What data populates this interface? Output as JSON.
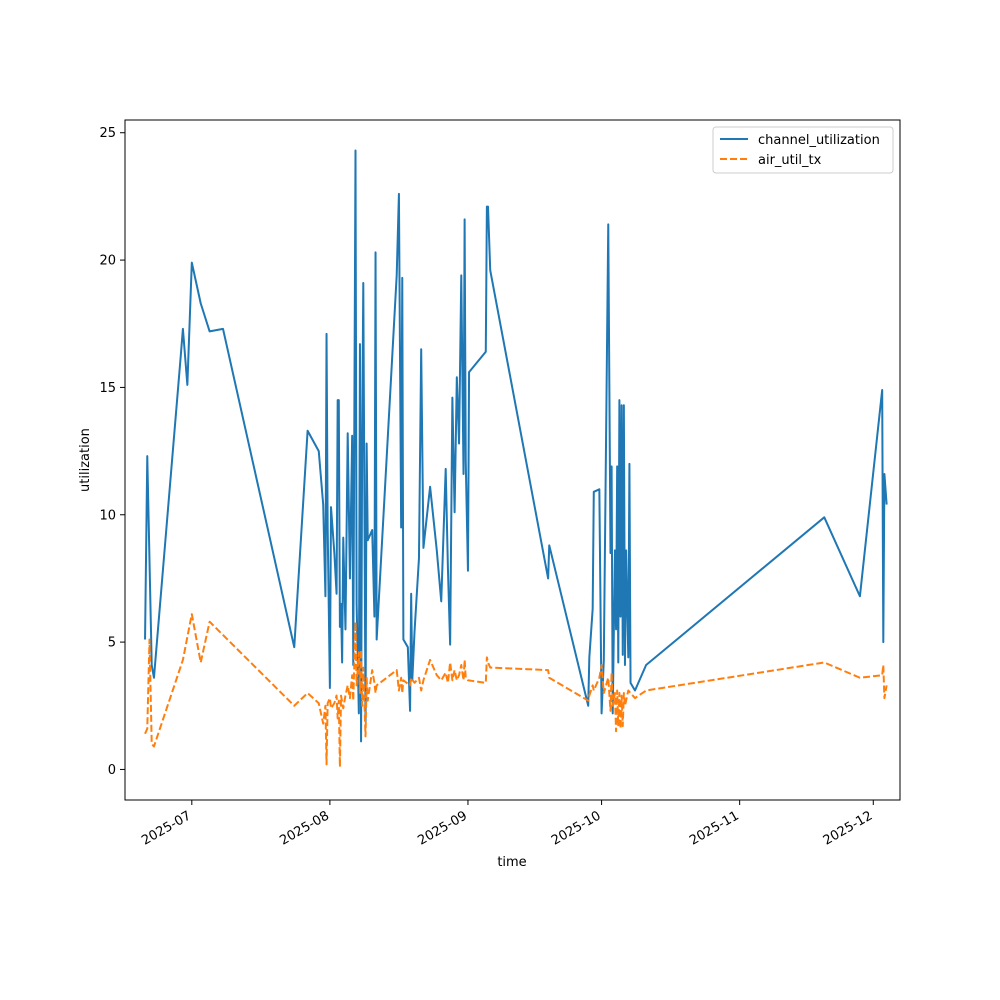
{
  "chart_data": {
    "type": "line",
    "title": "",
    "xlabel": "time",
    "ylabel": "utilization",
    "xlim": [
      "2025-06-16",
      "2025-12-07"
    ],
    "ylim": [
      -1.2,
      25.5
    ],
    "x_ticks": [
      "2025-07",
      "2025-08",
      "2025-09",
      "2025-10",
      "2025-11",
      "2025-12"
    ],
    "y_ticks": [
      0,
      5,
      10,
      15,
      20,
      25
    ],
    "grid": false,
    "legend_position": "upper right",
    "series": [
      {
        "name": "channel_utilization",
        "color": "#1f77b4",
        "style": "solid",
        "points": [
          [
            "2025-06-20 12:00",
            5.1
          ],
          [
            "2025-06-21 00:00",
            12.3
          ],
          [
            "2025-06-22 00:00",
            4.1
          ],
          [
            "2025-06-22 12:00",
            3.6
          ],
          [
            "2025-06-28 12:00",
            16.2
          ],
          [
            "2025-06-29 00:00",
            17.3
          ],
          [
            "2025-06-30 00:00",
            15.1
          ],
          [
            "2025-07-01 00:00",
            19.9
          ],
          [
            "2025-07-03 00:00",
            18.3
          ],
          [
            "2025-07-05 00:00",
            17.2
          ],
          [
            "2025-07-08 00:00",
            17.3
          ],
          [
            "2025-07-24 00:00",
            4.8
          ],
          [
            "2025-07-27 00:00",
            13.3
          ],
          [
            "2025-07-29 12:00",
            12.5
          ],
          [
            "2025-07-30 12:00",
            10.4
          ],
          [
            "2025-07-31 00:00",
            6.8
          ],
          [
            "2025-07-31 06:00",
            17.1
          ],
          [
            "2025-07-31 12:00",
            9.5
          ],
          [
            "2025-08-01 00:00",
            3.2
          ],
          [
            "2025-08-01 06:00",
            10.3
          ],
          [
            "2025-08-02 00:00",
            8.5
          ],
          [
            "2025-08-02 12:00",
            6.9
          ],
          [
            "2025-08-02 18:00",
            14.5
          ],
          [
            "2025-08-03 00:00",
            14.5
          ],
          [
            "2025-08-03 06:00",
            5.6
          ],
          [
            "2025-08-03 12:00",
            6.5
          ],
          [
            "2025-08-03 18:00",
            4.2
          ],
          [
            "2025-08-04 00:00",
            9.1
          ],
          [
            "2025-08-04 12:00",
            5.5
          ],
          [
            "2025-08-05 00:00",
            13.2
          ],
          [
            "2025-08-05 12:00",
            7.5
          ],
          [
            "2025-08-06 00:00",
            13.1
          ],
          [
            "2025-08-06 06:00",
            4.1
          ],
          [
            "2025-08-06 18:00",
            24.3
          ],
          [
            "2025-08-07 00:00",
            6.5
          ],
          [
            "2025-08-07 12:00",
            2.2
          ],
          [
            "2025-08-07 18:00",
            16.7
          ],
          [
            "2025-08-08 00:00",
            1.1
          ],
          [
            "2025-08-08 06:00",
            13.1
          ],
          [
            "2025-08-08 12:00",
            19.1
          ],
          [
            "2025-08-09 00:00",
            1.9
          ],
          [
            "2025-08-09 06:00",
            12.8
          ],
          [
            "2025-08-09 12:00",
            9.0
          ],
          [
            "2025-08-10 12:00",
            9.4
          ],
          [
            "2025-08-11 00:00",
            6.0
          ],
          [
            "2025-08-11 06:00",
            20.3
          ],
          [
            "2025-08-11 12:00",
            5.1
          ],
          [
            "2025-08-16 00:00",
            19.4
          ],
          [
            "2025-08-16 12:00",
            22.6
          ],
          [
            "2025-08-17 00:00",
            9.5
          ],
          [
            "2025-08-17 06:00",
            19.3
          ],
          [
            "2025-08-17 12:00",
            5.1
          ],
          [
            "2025-08-18 12:00",
            4.8
          ],
          [
            "2025-08-19 00:00",
            2.3
          ],
          [
            "2025-08-19 06:00",
            6.9
          ],
          [
            "2025-08-19 12:00",
            3.5
          ],
          [
            "2025-08-20 00:00",
            5.4
          ],
          [
            "2025-08-21 00:00",
            8.3
          ],
          [
            "2025-08-21 12:00",
            16.5
          ],
          [
            "2025-08-22 00:00",
            8.7
          ],
          [
            "2025-08-23 12:00",
            11.1
          ],
          [
            "2025-08-25 00:00",
            8.6
          ],
          [
            "2025-08-26 00:00",
            6.6
          ],
          [
            "2025-08-27 00:00",
            11.8
          ],
          [
            "2025-08-27 12:00",
            7.9
          ],
          [
            "2025-08-28 00:00",
            4.9
          ],
          [
            "2025-08-28 12:00",
            14.6
          ],
          [
            "2025-08-29 00:00",
            10.1
          ],
          [
            "2025-08-29 12:00",
            15.4
          ],
          [
            "2025-08-30 00:00",
            12.8
          ],
          [
            "2025-08-30 12:00",
            19.4
          ],
          [
            "2025-08-31 00:00",
            11.6
          ],
          [
            "2025-08-31 06:00",
            21.6
          ],
          [
            "2025-08-31 12:00",
            12.1
          ],
          [
            "2025-09-01 00:00",
            7.8
          ],
          [
            "2025-09-01 06:00",
            15.6
          ],
          [
            "2025-09-05 00:00",
            16.4
          ],
          [
            "2025-09-05 06:00",
            22.1
          ],
          [
            "2025-09-05 12:00",
            22.1
          ],
          [
            "2025-09-06 00:00",
            19.6
          ],
          [
            "2025-09-19 00:00",
            7.5
          ],
          [
            "2025-09-19 06:00",
            8.8
          ],
          [
            "2025-09-28 00:00",
            2.5
          ],
          [
            "2025-09-28 06:00",
            4.4
          ],
          [
            "2025-09-29 00:00",
            6.3
          ],
          [
            "2025-09-29 06:00",
            10.9
          ],
          [
            "2025-09-30 12:00",
            11.0
          ],
          [
            "2025-10-01 00:00",
            2.2
          ],
          [
            "2025-10-01 12:00",
            4.3
          ],
          [
            "2025-10-02 12:00",
            21.4
          ],
          [
            "2025-10-03 00:00",
            8.5
          ],
          [
            "2025-10-03 06:00",
            11.9
          ],
          [
            "2025-10-03 12:00",
            2.2
          ],
          [
            "2025-10-04 00:00",
            8.6
          ],
          [
            "2025-10-04 06:00",
            5.5
          ],
          [
            "2025-10-04 12:00",
            11.9
          ],
          [
            "2025-10-04 18:00",
            4.2
          ],
          [
            "2025-10-05 00:00",
            14.5
          ],
          [
            "2025-10-05 06:00",
            6.0
          ],
          [
            "2025-10-05 12:00",
            14.3
          ],
          [
            "2025-10-05 18:00",
            4.5
          ],
          [
            "2025-10-06 00:00",
            14.3
          ],
          [
            "2025-10-06 06:00",
            4.1
          ],
          [
            "2025-10-06 12:00",
            8.6
          ],
          [
            "2025-10-07 00:00",
            4.4
          ],
          [
            "2025-10-07 06:00",
            12.0
          ],
          [
            "2025-10-07 12:00",
            3.4
          ],
          [
            "2025-10-08 12:00",
            3.1
          ],
          [
            "2025-10-11 00:00",
            4.1
          ],
          [
            "2025-11-20 00:00",
            9.9
          ],
          [
            "2025-11-28 00:00",
            6.8
          ],
          [
            "2025-12-03 00:00",
            14.9
          ],
          [
            "2025-12-03 06:00",
            5.0
          ],
          [
            "2025-12-03 12:00",
            11.6
          ],
          [
            "2025-12-04 00:00",
            10.4
          ]
        ]
      },
      {
        "name": "air_util_tx",
        "color": "#ff7f0e",
        "style": "dashed",
        "points": [
          [
            "2025-06-20 12:00",
            1.4
          ],
          [
            "2025-06-21 00:00",
            1.6
          ],
          [
            "2025-06-21 12:00",
            5.1
          ],
          [
            "2025-06-22 00:00",
            1.0
          ],
          [
            "2025-06-22 12:00",
            0.9
          ],
          [
            "2025-06-29 00:00",
            4.3
          ],
          [
            "2025-07-01 00:00",
            6.1
          ],
          [
            "2025-07-03 00:00",
            4.2
          ],
          [
            "2025-07-05 00:00",
            5.8
          ],
          [
            "2025-07-24 00:00",
            2.5
          ],
          [
            "2025-07-27 00:00",
            3.0
          ],
          [
            "2025-07-29 12:00",
            2.6
          ],
          [
            "2025-07-30 12:00",
            1.8
          ],
          [
            "2025-07-31 00:00",
            2.5
          ],
          [
            "2025-07-31 06:00",
            0.2
          ],
          [
            "2025-07-31 12:00",
            2.6
          ],
          [
            "2025-08-01 00:00",
            2.8
          ],
          [
            "2025-08-01 06:00",
            2.4
          ],
          [
            "2025-08-02 00:00",
            2.6
          ],
          [
            "2025-08-02 12:00",
            2.9
          ],
          [
            "2025-08-02 18:00",
            2.0
          ],
          [
            "2025-08-03 00:00",
            2.7
          ],
          [
            "2025-08-03 06:00",
            0.1
          ],
          [
            "2025-08-03 12:00",
            2.9
          ],
          [
            "2025-08-04 00:00",
            2.4
          ],
          [
            "2025-08-04 12:00",
            2.9
          ],
          [
            "2025-08-05 00:00",
            3.3
          ],
          [
            "2025-08-05 12:00",
            2.8
          ],
          [
            "2025-08-06 00:00",
            3.7
          ],
          [
            "2025-08-06 06:00",
            2.7
          ],
          [
            "2025-08-06 18:00",
            5.8
          ],
          [
            "2025-08-07 00:00",
            3.3
          ],
          [
            "2025-08-07 12:00",
            4.6
          ],
          [
            "2025-08-07 18:00",
            3.0
          ],
          [
            "2025-08-08 00:00",
            4.7
          ],
          [
            "2025-08-08 06:00",
            2.5
          ],
          [
            "2025-08-08 12:00",
            4.0
          ],
          [
            "2025-08-09 00:00",
            1.3
          ],
          [
            "2025-08-09 06:00",
            3.6
          ],
          [
            "2025-08-09 12:00",
            2.7
          ],
          [
            "2025-08-10 12:00",
            3.9
          ],
          [
            "2025-08-11 00:00",
            3.4
          ],
          [
            "2025-08-11 06:00",
            3.0
          ],
          [
            "2025-08-11 12:00",
            3.3
          ],
          [
            "2025-08-16 00:00",
            3.9
          ],
          [
            "2025-08-16 12:00",
            3.1
          ],
          [
            "2025-08-17 00:00",
            3.6
          ],
          [
            "2025-08-17 06:00",
            3.0
          ],
          [
            "2025-08-17 12:00",
            3.5
          ],
          [
            "2025-08-19 00:00",
            3.3
          ],
          [
            "2025-08-19 06:00",
            3.6
          ],
          [
            "2025-08-20 00:00",
            3.4
          ],
          [
            "2025-08-21 00:00",
            3.6
          ],
          [
            "2025-08-21 12:00",
            3.1
          ],
          [
            "2025-08-22 00:00",
            3.5
          ],
          [
            "2025-08-23 12:00",
            4.3
          ],
          [
            "2025-08-25 00:00",
            3.7
          ],
          [
            "2025-08-26 00:00",
            3.5
          ],
          [
            "2025-08-27 00:00",
            3.8
          ],
          [
            "2025-08-27 12:00",
            3.4
          ],
          [
            "2025-08-28 00:00",
            4.2
          ],
          [
            "2025-08-28 12:00",
            3.5
          ],
          [
            "2025-08-29 00:00",
            3.9
          ],
          [
            "2025-08-29 12:00",
            3.5
          ],
          [
            "2025-08-30 00:00",
            3.7
          ],
          [
            "2025-08-30 12:00",
            4.1
          ],
          [
            "2025-08-31 00:00",
            3.5
          ],
          [
            "2025-08-31 06:00",
            4.3
          ],
          [
            "2025-08-31 12:00",
            3.6
          ],
          [
            "2025-09-01 00:00",
            3.5
          ],
          [
            "2025-09-05 00:00",
            3.4
          ],
          [
            "2025-09-05 06:00",
            4.4
          ],
          [
            "2025-09-05 12:00",
            4.2
          ],
          [
            "2025-09-06 00:00",
            4.0
          ],
          [
            "2025-09-19 00:00",
            3.9
          ],
          [
            "2025-09-19 06:00",
            3.6
          ],
          [
            "2025-09-28 00:00",
            2.7
          ],
          [
            "2025-09-28 06:00",
            2.9
          ],
          [
            "2025-09-29 00:00",
            3.3
          ],
          [
            "2025-09-29 06:00",
            3.1
          ],
          [
            "2025-09-30 12:00",
            3.6
          ],
          [
            "2025-10-01 00:00",
            4.1
          ],
          [
            "2025-10-01 12:00",
            3.0
          ],
          [
            "2025-10-02 12:00",
            3.6
          ],
          [
            "2025-10-03 00:00",
            2.3
          ],
          [
            "2025-10-03 06:00",
            3.8
          ],
          [
            "2025-10-03 12:00",
            2.5
          ],
          [
            "2025-10-04 00:00",
            3.0
          ],
          [
            "2025-10-04 06:00",
            1.5
          ],
          [
            "2025-10-04 12:00",
            3.1
          ],
          [
            "2025-10-04 18:00",
            1.7
          ],
          [
            "2025-10-05 00:00",
            3.0
          ],
          [
            "2025-10-05 06:00",
            1.6
          ],
          [
            "2025-10-05 12:00",
            2.9
          ],
          [
            "2025-10-05 18:00",
            1.7
          ],
          [
            "2025-10-06 00:00",
            3.0
          ],
          [
            "2025-10-06 06:00",
            2.5
          ],
          [
            "2025-10-07 00:00",
            3.1
          ],
          [
            "2025-10-08 12:00",
            2.8
          ],
          [
            "2025-10-11 00:00",
            3.1
          ],
          [
            "2025-11-20 00:00",
            4.2
          ],
          [
            "2025-11-28 00:00",
            3.6
          ],
          [
            "2025-12-03 00:00",
            3.7
          ],
          [
            "2025-12-03 06:00",
            4.1
          ],
          [
            "2025-12-03 12:00",
            2.8
          ],
          [
            "2025-12-04 00:00",
            3.3
          ]
        ]
      }
    ]
  }
}
